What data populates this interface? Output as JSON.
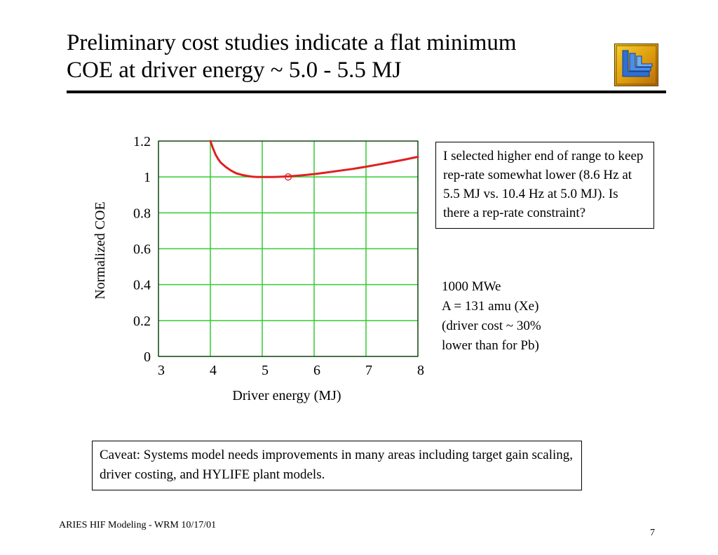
{
  "slide": {
    "title_lines": [
      "Preliminary cost studies indicate a flat minimum",
      "COE at driver energy ~ 5.0 - 5.5 MJ"
    ],
    "note": "I selected higher end of range to keep rep-rate somewhat lower (8.6 Hz at 5.5 MJ vs. 10.4 Hz at 5.0 MJ). Is there a rep-rate constraint?",
    "params_lines": [
      "1000 MWe",
      "A = 131 amu (Xe)",
      "(driver cost ~ 30%",
      "lower than for Pb)"
    ],
    "caveat": "Caveat: Systems model needs improvements in many areas including target gain scaling, driver costing, and HYLIFE plant models.",
    "footer": "ARIES HIF Modeling - WRM 10/17/01",
    "page_number": "7",
    "logo_icon": "llnl-logo-icon"
  },
  "chart_data": {
    "type": "line",
    "xlabel": "Driver energy (MJ)",
    "ylabel": "Normalized COE",
    "xlim": [
      3,
      8
    ],
    "ylim": [
      0,
      1.2
    ],
    "x_ticks": [
      "3",
      "4",
      "5",
      "6",
      "7",
      "8"
    ],
    "y_ticks": [
      "1.2",
      "1",
      "0.8",
      "0.6",
      "0.4",
      "0.2",
      "0"
    ],
    "grid": true,
    "series": [
      {
        "color": "#e02020",
        "x": [
          4.0,
          4.05,
          4.1,
          4.15,
          4.2,
          4.3,
          4.4,
          4.5,
          4.6,
          4.7,
          4.8,
          4.9,
          5.0,
          5.2,
          5.4,
          5.5,
          5.6,
          5.8,
          6.0,
          6.25,
          6.5,
          6.75,
          7.0,
          7.25,
          7.5,
          7.75,
          8.0
        ],
        "y": [
          1.2,
          1.16,
          1.125,
          1.1,
          1.08,
          1.055,
          1.035,
          1.02,
          1.012,
          1.006,
          1.002,
          1.0,
          1.0,
          1.0,
          1.002,
          1.003,
          1.005,
          1.01,
          1.016,
          1.025,
          1.035,
          1.045,
          1.057,
          1.07,
          1.083,
          1.097,
          1.112
        ]
      }
    ],
    "marker": {
      "x": 5.5,
      "y": 1.0,
      "shape": "open-circle",
      "color": "#e02020"
    },
    "colors": {
      "grid": "#33cc33",
      "axis": "#000000",
      "line": "#e02020"
    }
  }
}
